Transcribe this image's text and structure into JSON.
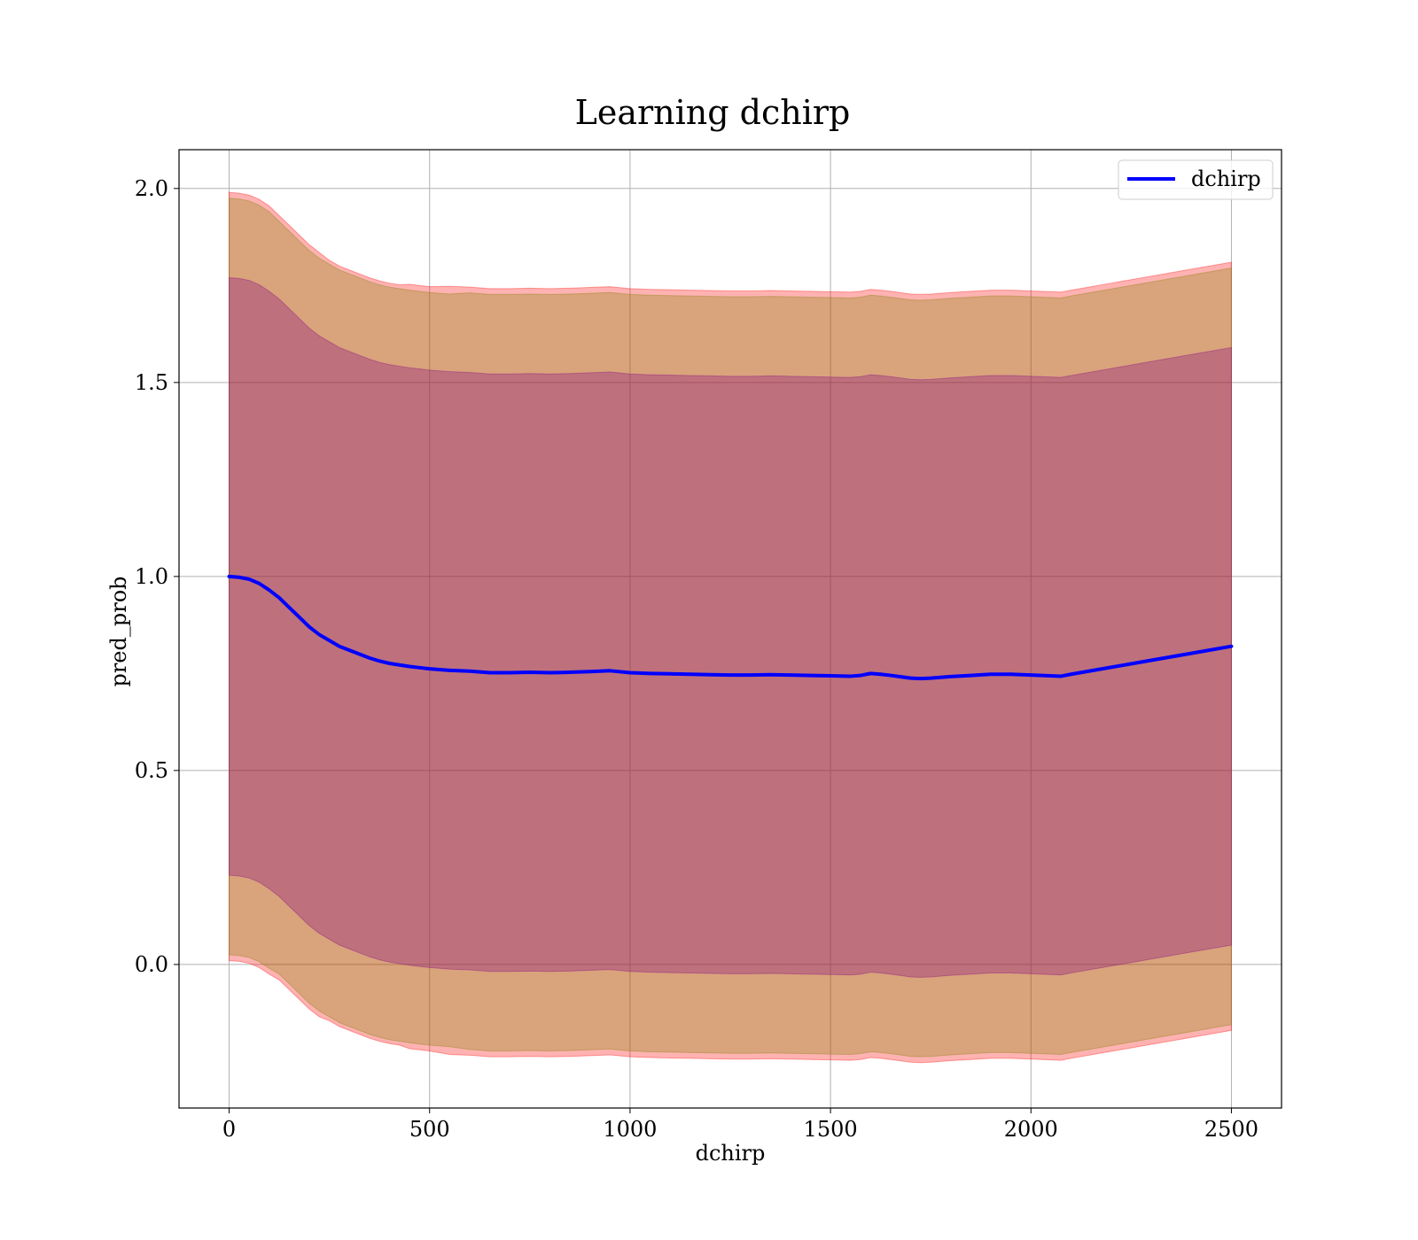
{
  "chart_data": {
    "type": "area",
    "title": "Learning dchirp",
    "xlabel": "dchirp",
    "ylabel": "pred_prob",
    "xlim": [
      -125,
      2625
    ],
    "ylim": [
      -0.37,
      2.1
    ],
    "xticks": [
      0,
      500,
      1000,
      1500,
      2000,
      2500
    ],
    "xtick_labels": [
      "0",
      "500",
      "1000",
      "1500",
      "2000",
      "2500"
    ],
    "yticks": [
      0.0,
      0.5,
      1.0,
      1.5,
      2.0
    ],
    "ytick_labels": [
      "0.0",
      "0.5",
      "1.0",
      "1.5",
      "2.0"
    ],
    "grid": true,
    "legend_position": "top-right",
    "x": [
      0,
      25,
      50,
      75,
      100,
      125,
      150,
      175,
      200,
      225,
      250,
      275,
      300,
      325,
      350,
      375,
      400,
      425,
      450,
      475,
      500,
      550,
      600,
      650,
      700,
      750,
      800,
      850,
      900,
      950,
      1000,
      1050,
      1100,
      1150,
      1200,
      1250,
      1300,
      1350,
      1400,
      1450,
      1500,
      1550,
      1575,
      1600,
      1625,
      1650,
      1700,
      1725,
      1750,
      1800,
      1850,
      1900,
      1950,
      2000,
      2075,
      2100,
      2200,
      2300,
      2400,
      2500
    ],
    "series": [
      {
        "name": "dchirp",
        "color": "#0000ff",
        "values": [
          1.0,
          0.998,
          0.993,
          0.982,
          0.965,
          0.945,
          0.92,
          0.895,
          0.87,
          0.85,
          0.835,
          0.82,
          0.81,
          0.8,
          0.79,
          0.782,
          0.776,
          0.772,
          0.768,
          0.765,
          0.762,
          0.758,
          0.756,
          0.752,
          0.752,
          0.753,
          0.752,
          0.753,
          0.755,
          0.757,
          0.752,
          0.75,
          0.749,
          0.748,
          0.747,
          0.746,
          0.746,
          0.747,
          0.746,
          0.745,
          0.744,
          0.743,
          0.745,
          0.75,
          0.748,
          0.745,
          0.738,
          0.737,
          0.738,
          0.742,
          0.745,
          0.748,
          0.748,
          0.746,
          0.743,
          0.748,
          0.766,
          0.784,
          0.802,
          0.82
        ]
      }
    ],
    "bands": [
      {
        "color": "#ff0000",
        "opacity": 0.3,
        "half_width": [
          0.99,
          0.99,
          0.99,
          0.99,
          0.99,
          0.985,
          0.985,
          0.985,
          0.985,
          0.985,
          0.98,
          0.98,
          0.98,
          0.98,
          0.98,
          0.98,
          0.98,
          0.98,
          0.985,
          0.985,
          0.985,
          0.99,
          0.99,
          0.99,
          0.99,
          0.99,
          0.99,
          0.99,
          0.99,
          0.99,
          0.99,
          0.99,
          0.99,
          0.99,
          0.99,
          0.99,
          0.99,
          0.99,
          0.99,
          0.99,
          0.99,
          0.99,
          0.99,
          0.99,
          0.99,
          0.99,
          0.99,
          0.99,
          0.99,
          0.99,
          0.99,
          0.99,
          0.99,
          0.99,
          0.99,
          0.99,
          0.99,
          0.99,
          0.99,
          0.99
        ]
      },
      {
        "color": "#808000",
        "opacity": 0.3,
        "half_width": [
          0.975,
          0.975,
          0.975,
          0.975,
          0.975,
          0.97,
          0.97,
          0.97,
          0.97,
          0.97,
          0.97,
          0.97,
          0.97,
          0.97,
          0.97,
          0.97,
          0.97,
          0.97,
          0.97,
          0.97,
          0.97,
          0.97,
          0.975,
          0.975,
          0.975,
          0.975,
          0.975,
          0.975,
          0.975,
          0.975,
          0.975,
          0.975,
          0.975,
          0.975,
          0.975,
          0.975,
          0.975,
          0.975,
          0.975,
          0.975,
          0.975,
          0.975,
          0.975,
          0.975,
          0.975,
          0.975,
          0.975,
          0.975,
          0.975,
          0.975,
          0.975,
          0.975,
          0.975,
          0.975,
          0.975,
          0.975,
          0.975,
          0.975,
          0.975,
          0.975
        ]
      },
      {
        "color": "#800080",
        "opacity": 0.3,
        "half_width": [
          0.77,
          0.77,
          0.77,
          0.77,
          0.77,
          0.77,
          0.77,
          0.77,
          0.77,
          0.77,
          0.77,
          0.77,
          0.77,
          0.77,
          0.77,
          0.77,
          0.77,
          0.77,
          0.77,
          0.77,
          0.77,
          0.77,
          0.77,
          0.77,
          0.77,
          0.77,
          0.77,
          0.77,
          0.77,
          0.77,
          0.77,
          0.77,
          0.77,
          0.77,
          0.77,
          0.77,
          0.77,
          0.77,
          0.77,
          0.77,
          0.77,
          0.77,
          0.77,
          0.77,
          0.77,
          0.77,
          0.77,
          0.77,
          0.77,
          0.77,
          0.77,
          0.77,
          0.77,
          0.77,
          0.77,
          0.77,
          0.77,
          0.77,
          0.77,
          0.77
        ]
      }
    ]
  }
}
